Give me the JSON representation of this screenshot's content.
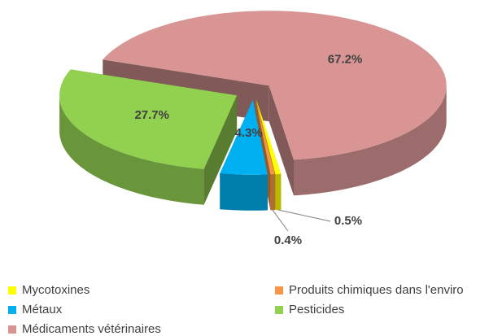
{
  "chart_data": {
    "type": "pie",
    "categories": [
      "Mycotoxines",
      "Produits chimiques dans l'enviro",
      "Métaux",
      "Pesticides",
      "Médicaments vétérinaires"
    ],
    "values": [
      0.5,
      0.4,
      4.3,
      27.7,
      67.2
    ],
    "value_labels": [
      "0.5%",
      "0.4%",
      "4.3%",
      "27.7%",
      "67.2%"
    ],
    "colors": [
      "#ffff00",
      "#f79646",
      "#00b0f0",
      "#92d050",
      "#d99594"
    ],
    "legend": "bottom"
  }
}
